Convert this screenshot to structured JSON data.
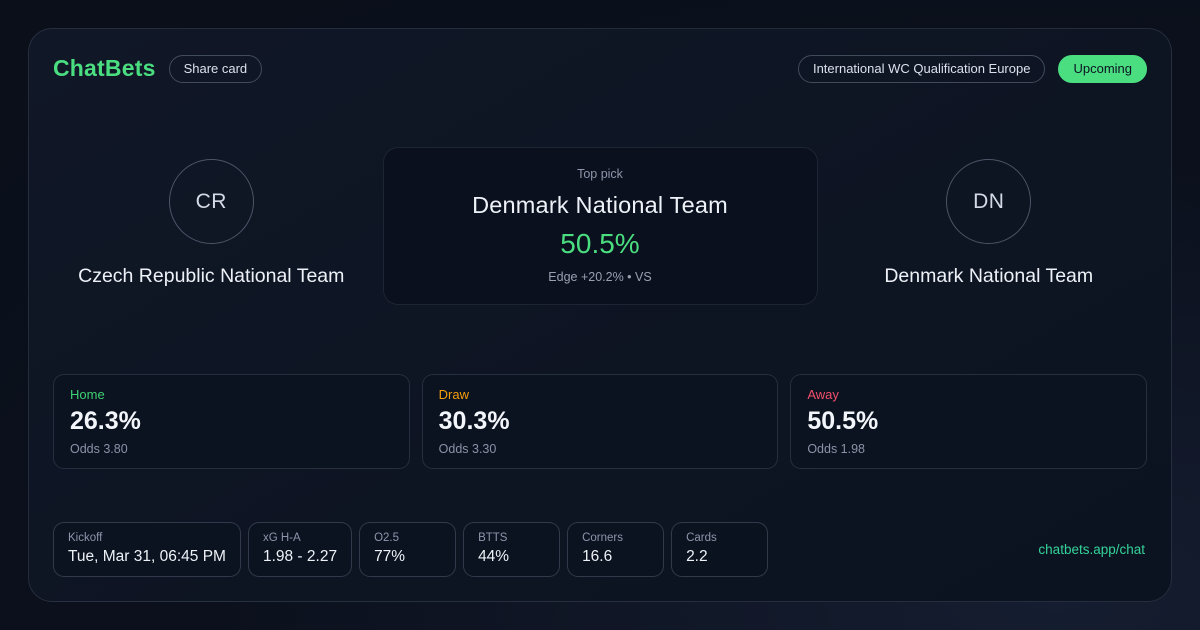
{
  "brand": {
    "name": "ChatBets",
    "share_label": "Share card",
    "accent_color": "#4ade80"
  },
  "header": {
    "league": "International WC Qualification Europe",
    "status": "Upcoming",
    "status_color": "#4ade80"
  },
  "match": {
    "home_team": {
      "initials": "CR",
      "name": "Czech Republic National Team"
    },
    "away_team": {
      "initials": "DN",
      "name": "Denmark National Team"
    },
    "top_pick": {
      "label": "Top pick",
      "team": "Denmark National Team",
      "probability": "50.5%",
      "probability_color": "#4ade80",
      "edge_line": "Edge +20.2% • VS"
    }
  },
  "odds": [
    {
      "label": "Home",
      "probability": "26.3%",
      "odds": "Odds 3.80",
      "color": "#3fd073"
    },
    {
      "label": "Draw",
      "probability": "30.3%",
      "odds": "Odds 3.30",
      "color": "#f59e0b"
    },
    {
      "label": "Away",
      "probability": "50.5%",
      "odds": "Odds 1.98",
      "color": "#f0506b"
    }
  ],
  "stats": [
    {
      "label": "Kickoff",
      "value": "Tue, Mar 31, 06:45 PM"
    },
    {
      "label": "xG H-A",
      "value": "1.98 - 2.27"
    },
    {
      "label": "O2.5",
      "value": "77%"
    },
    {
      "label": "BTTS",
      "value": "44%"
    },
    {
      "label": "Corners",
      "value": "16.6"
    },
    {
      "label": "Cards",
      "value": "2.2"
    }
  ],
  "footer": {
    "link": "chatbets.app/chat",
    "link_color": "#34d399"
  }
}
